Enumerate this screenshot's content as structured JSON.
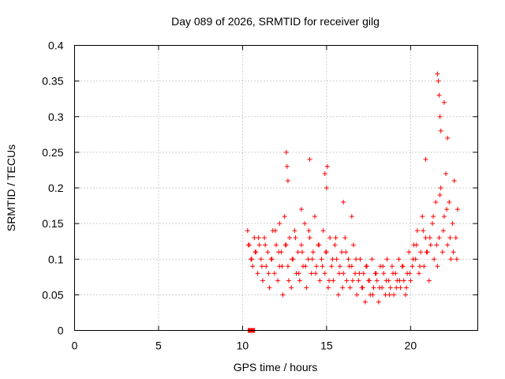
{
  "chart_data": {
    "type": "scatter",
    "title": "Day 089 of 2026, SRMTID for receiver gilg",
    "xlabel": "GPS time / hours",
    "ylabel": "SRMTID / TECUs",
    "xlim": [
      0,
      24
    ],
    "ylim": [
      0,
      0.4
    ],
    "xticks": [
      0,
      5,
      10,
      15,
      20
    ],
    "xtick_labels": [
      "0",
      "5",
      "10",
      "15",
      "20"
    ],
    "yticks": [
      0,
      0.05,
      0.1,
      0.15,
      0.2,
      0.25,
      0.3,
      0.35,
      0.4
    ],
    "ytick_labels": [
      "0",
      "0.05",
      "0.1",
      "0.15",
      "0.2",
      "0.25",
      "0.3",
      "0.35",
      "0.4"
    ],
    "grid": true,
    "marker": "+",
    "color": "#ff0000",
    "series": [
      {
        "name": "SRMTID",
        "x": [
          10.3,
          10.4,
          10.5,
          10.6,
          10.7,
          10.8,
          10.9,
          11.0,
          11.1,
          11.2,
          11.3,
          11.4,
          11.5,
          11.6,
          11.7,
          11.8,
          11.9,
          12.0,
          12.1,
          12.2,
          12.3,
          12.4,
          12.5,
          12.6,
          12.7,
          12.8,
          12.9,
          13.0,
          13.1,
          13.2,
          13.3,
          13.4,
          13.5,
          13.6,
          13.7,
          13.8,
          13.9,
          14.0,
          14.1,
          14.2,
          14.3,
          14.4,
          14.5,
          14.6,
          14.7,
          14.8,
          14.9,
          15.0,
          15.1,
          15.2,
          15.3,
          15.4,
          15.5,
          15.6,
          15.7,
          15.8,
          15.9,
          16.0,
          16.1,
          16.2,
          16.3,
          16.4,
          16.5,
          16.6,
          16.7,
          16.8,
          16.9,
          17.0,
          17.1,
          17.2,
          17.3,
          17.4,
          17.5,
          17.6,
          17.7,
          17.8,
          17.9,
          18.0,
          18.1,
          18.2,
          18.3,
          18.4,
          18.5,
          18.6,
          18.7,
          18.8,
          18.9,
          19.0,
          19.1,
          19.2,
          19.3,
          19.4,
          19.5,
          19.6,
          19.7,
          19.8,
          19.9,
          20.0,
          20.1,
          20.2,
          20.3,
          20.4,
          20.5,
          20.6,
          20.7,
          20.8,
          20.9,
          21.0,
          21.1,
          21.2,
          21.3,
          21.4,
          21.5,
          21.6,
          21.7,
          21.8,
          21.9,
          22.0,
          22.1,
          22.2,
          22.3,
          22.4,
          22.5,
          22.6,
          22.7,
          22.8,
          10.35,
          10.55,
          10.75,
          10.95,
          11.15,
          11.35,
          11.55,
          11.75,
          11.95,
          12.15,
          12.35,
          12.55,
          12.75,
          12.95,
          13.15,
          13.35,
          13.55,
          13.75,
          13.95,
          14.15,
          14.35,
          14.55,
          14.75,
          14.95,
          15.15,
          15.35,
          15.55,
          15.75,
          15.95,
          16.15,
          16.35,
          16.55,
          16.75,
          16.95,
          17.15,
          17.35,
          17.55,
          17.75,
          17.95,
          18.15,
          18.35,
          18.55,
          18.75,
          18.95,
          19.15,
          19.35,
          19.55,
          19.75,
          19.95,
          20.15,
          20.35,
          20.55,
          20.75,
          20.95,
          21.15,
          21.35,
          21.55,
          21.75,
          21.95,
          22.15,
          22.35,
          22.55,
          22.75,
          12.6,
          12.65,
          12.7,
          14.0,
          14.9,
          15.0,
          15.05,
          21.6,
          21.65,
          21.7,
          21.75,
          21.8,
          22.0,
          22.2,
          16.0,
          16.5,
          12.2,
          13.5,
          20.9
        ],
        "y": [
          0.14,
          0.12,
          0.1,
          0.09,
          0.13,
          0.11,
          0.08,
          0.12,
          0.1,
          0.07,
          0.13,
          0.09,
          0.11,
          0.06,
          0.1,
          0.14,
          0.08,
          0.12,
          0.07,
          0.09,
          0.11,
          0.05,
          0.16,
          0.12,
          0.09,
          0.13,
          0.06,
          0.1,
          0.14,
          0.08,
          0.11,
          0.07,
          0.12,
          0.09,
          0.15,
          0.06,
          0.1,
          0.13,
          0.08,
          0.11,
          0.16,
          0.09,
          0.12,
          0.07,
          0.1,
          0.14,
          0.08,
          0.11,
          0.06,
          0.13,
          0.09,
          0.07,
          0.12,
          0.1,
          0.05,
          0.09,
          0.11,
          0.08,
          0.13,
          0.07,
          0.1,
          0.06,
          0.09,
          0.12,
          0.08,
          0.05,
          0.07,
          0.1,
          0.06,
          0.08,
          0.04,
          0.09,
          0.07,
          0.05,
          0.1,
          0.06,
          0.08,
          0.07,
          0.04,
          0.09,
          0.06,
          0.08,
          0.05,
          0.1,
          0.07,
          0.06,
          0.09,
          0.05,
          0.08,
          0.07,
          0.1,
          0.06,
          0.09,
          0.07,
          0.05,
          0.08,
          0.11,
          0.07,
          0.09,
          0.12,
          0.1,
          0.14,
          0.08,
          0.11,
          0.16,
          0.09,
          0.13,
          0.11,
          0.07,
          0.12,
          0.15,
          0.1,
          0.18,
          0.09,
          0.13,
          0.2,
          0.11,
          0.16,
          0.22,
          0.12,
          0.18,
          0.1,
          0.15,
          0.21,
          0.13,
          0.17,
          0.12,
          0.1,
          0.11,
          0.13,
          0.09,
          0.12,
          0.08,
          0.1,
          0.14,
          0.11,
          0.09,
          0.12,
          0.07,
          0.1,
          0.13,
          0.08,
          0.11,
          0.09,
          0.14,
          0.1,
          0.08,
          0.12,
          0.09,
          0.11,
          0.07,
          0.1,
          0.13,
          0.08,
          0.06,
          0.11,
          0.09,
          0.07,
          0.1,
          0.08,
          0.06,
          0.09,
          0.07,
          0.05,
          0.08,
          0.06,
          0.09,
          0.07,
          0.05,
          0.08,
          0.06,
          0.07,
          0.09,
          0.06,
          0.08,
          0.1,
          0.12,
          0.09,
          0.14,
          0.11,
          0.13,
          0.16,
          0.12,
          0.19,
          0.14,
          0.17,
          0.13,
          0.11,
          0.1,
          0.25,
          0.23,
          0.21,
          0.24,
          0.22,
          0.2,
          0.23,
          0.36,
          0.35,
          0.33,
          0.3,
          0.28,
          0.32,
          0.27,
          0.18,
          0.16,
          0.15,
          0.17,
          0.24
        ],
        "flagged_x": [
          10.45,
          10.6
        ],
        "flagged_y": [
          0,
          0
        ]
      }
    ]
  }
}
